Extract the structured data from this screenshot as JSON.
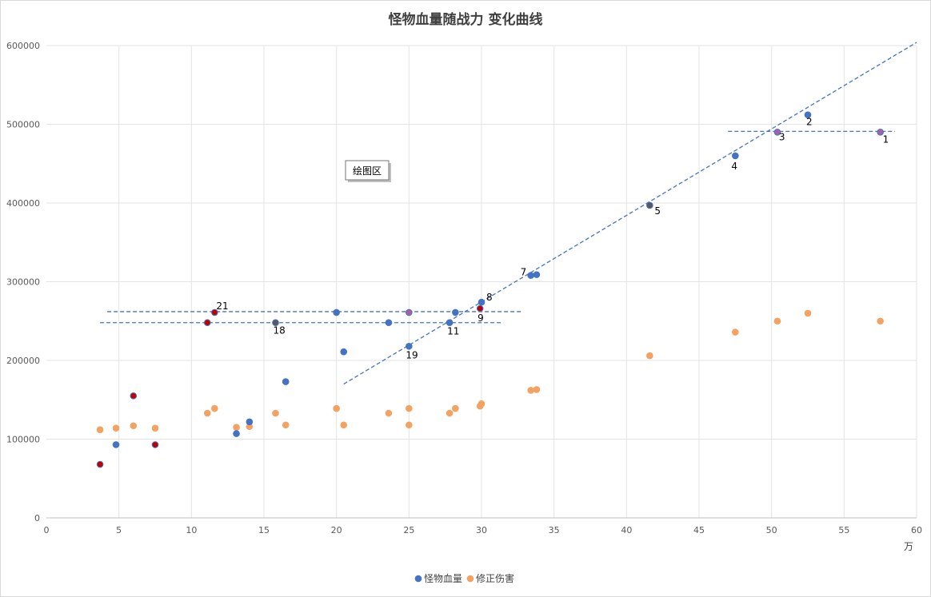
{
  "chart_data": {
    "type": "scatter",
    "title": "怪物血量随战力 变化曲线",
    "x_unit": "万",
    "xlim": [
      0,
      60
    ],
    "ylim": [
      0,
      600000
    ],
    "x_ticks": [
      0,
      5,
      10,
      15,
      20,
      25,
      30,
      35,
      40,
      45,
      50,
      55,
      60
    ],
    "y_ticks": [
      0,
      100000,
      200000,
      300000,
      400000,
      500000,
      600000
    ],
    "grid": true,
    "legend_position": "bottom",
    "plot_area_tooltip": "绘图区",
    "series": [
      {
        "name": "怪物血量",
        "color": "#4472c4",
        "points": [
          {
            "x": 3.7,
            "y": 68000,
            "marker": "#c00000"
          },
          {
            "x": 4.8,
            "y": 93000
          },
          {
            "x": 6.0,
            "y": 155000,
            "marker": "#c00000"
          },
          {
            "x": 7.5,
            "y": 93000,
            "marker": "#c00000"
          },
          {
            "x": 11.1,
            "y": 248000,
            "marker": "#c00000"
          },
          {
            "x": 11.6,
            "y": 261000,
            "marker": "#c00000",
            "label": "21"
          },
          {
            "x": 13.1,
            "y": 107000
          },
          {
            "x": 14.0,
            "y": 122000
          },
          {
            "x": 15.8,
            "y": 248000,
            "marker": "#595959",
            "label": "18"
          },
          {
            "x": 16.5,
            "y": 173000
          },
          {
            "x": 20.0,
            "y": 261000
          },
          {
            "x": 20.5,
            "y": 211000
          },
          {
            "x": 23.6,
            "y": 248000
          },
          {
            "x": 25.0,
            "y": 261000,
            "marker": "#a660a3"
          },
          {
            "x": 25.0,
            "y": 218000,
            "label": "19"
          },
          {
            "x": 27.8,
            "y": 248000,
            "label": "11"
          },
          {
            "x": 28.2,
            "y": 261000
          },
          {
            "x": 29.9,
            "y": 266000,
            "marker": "#c00000",
            "label": "9"
          },
          {
            "x": 30.0,
            "y": 274000,
            "label": "8"
          },
          {
            "x": 33.4,
            "y": 308000,
            "label": "7"
          },
          {
            "x": 33.8,
            "y": 309000
          },
          {
            "x": 41.6,
            "y": 397000,
            "marker": "#595959",
            "label": "5"
          },
          {
            "x": 47.5,
            "y": 460000,
            "label": "4"
          },
          {
            "x": 50.4,
            "y": 490000,
            "marker": "#a660a3",
            "label": "3"
          },
          {
            "x": 52.5,
            "y": 512000,
            "label": "2"
          },
          {
            "x": 57.5,
            "y": 490000,
            "marker": "#a660a3",
            "label": "1"
          }
        ]
      },
      {
        "name": "修正伤害",
        "color": "#f4a261",
        "points": [
          {
            "x": 3.7,
            "y": 112000
          },
          {
            "x": 4.8,
            "y": 114000
          },
          {
            "x": 6.0,
            "y": 117000
          },
          {
            "x": 7.5,
            "y": 114000
          },
          {
            "x": 11.1,
            "y": 133000
          },
          {
            "x": 11.6,
            "y": 139000
          },
          {
            "x": 13.1,
            "y": 115000
          },
          {
            "x": 14.0,
            "y": 116000
          },
          {
            "x": 15.8,
            "y": 133000
          },
          {
            "x": 16.5,
            "y": 118000
          },
          {
            "x": 20.0,
            "y": 139000
          },
          {
            "x": 20.5,
            "y": 118000
          },
          {
            "x": 23.6,
            "y": 133000
          },
          {
            "x": 25.0,
            "y": 139000
          },
          {
            "x": 25.0,
            "y": 118000
          },
          {
            "x": 27.8,
            "y": 133000
          },
          {
            "x": 28.2,
            "y": 139000
          },
          {
            "x": 29.9,
            "y": 142000
          },
          {
            "x": 30.0,
            "y": 145000
          },
          {
            "x": 33.4,
            "y": 162000
          },
          {
            "x": 33.8,
            "y": 163000
          },
          {
            "x": 41.6,
            "y": 206000
          },
          {
            "x": 47.5,
            "y": 236000
          },
          {
            "x": 50.4,
            "y": 250000
          },
          {
            "x": 52.5,
            "y": 260000
          },
          {
            "x": 57.5,
            "y": 250000
          }
        ]
      }
    ],
    "trend_lines": [
      {
        "x1": 20.5,
        "y1": 170000,
        "x2": 60,
        "y2": 604000,
        "color": "#4472c4"
      },
      {
        "x1": 4.2,
        "y1": 262000,
        "x2": 32.8,
        "y2": 262000,
        "color": "#4472c4"
      },
      {
        "x1": 3.7,
        "y1": 248000,
        "x2": 31.5,
        "y2": 248000,
        "color": "#4472c4"
      },
      {
        "x1": 47.0,
        "y1": 491000,
        "x2": 58.5,
        "y2": 491000,
        "color": "#4472c4"
      }
    ]
  }
}
